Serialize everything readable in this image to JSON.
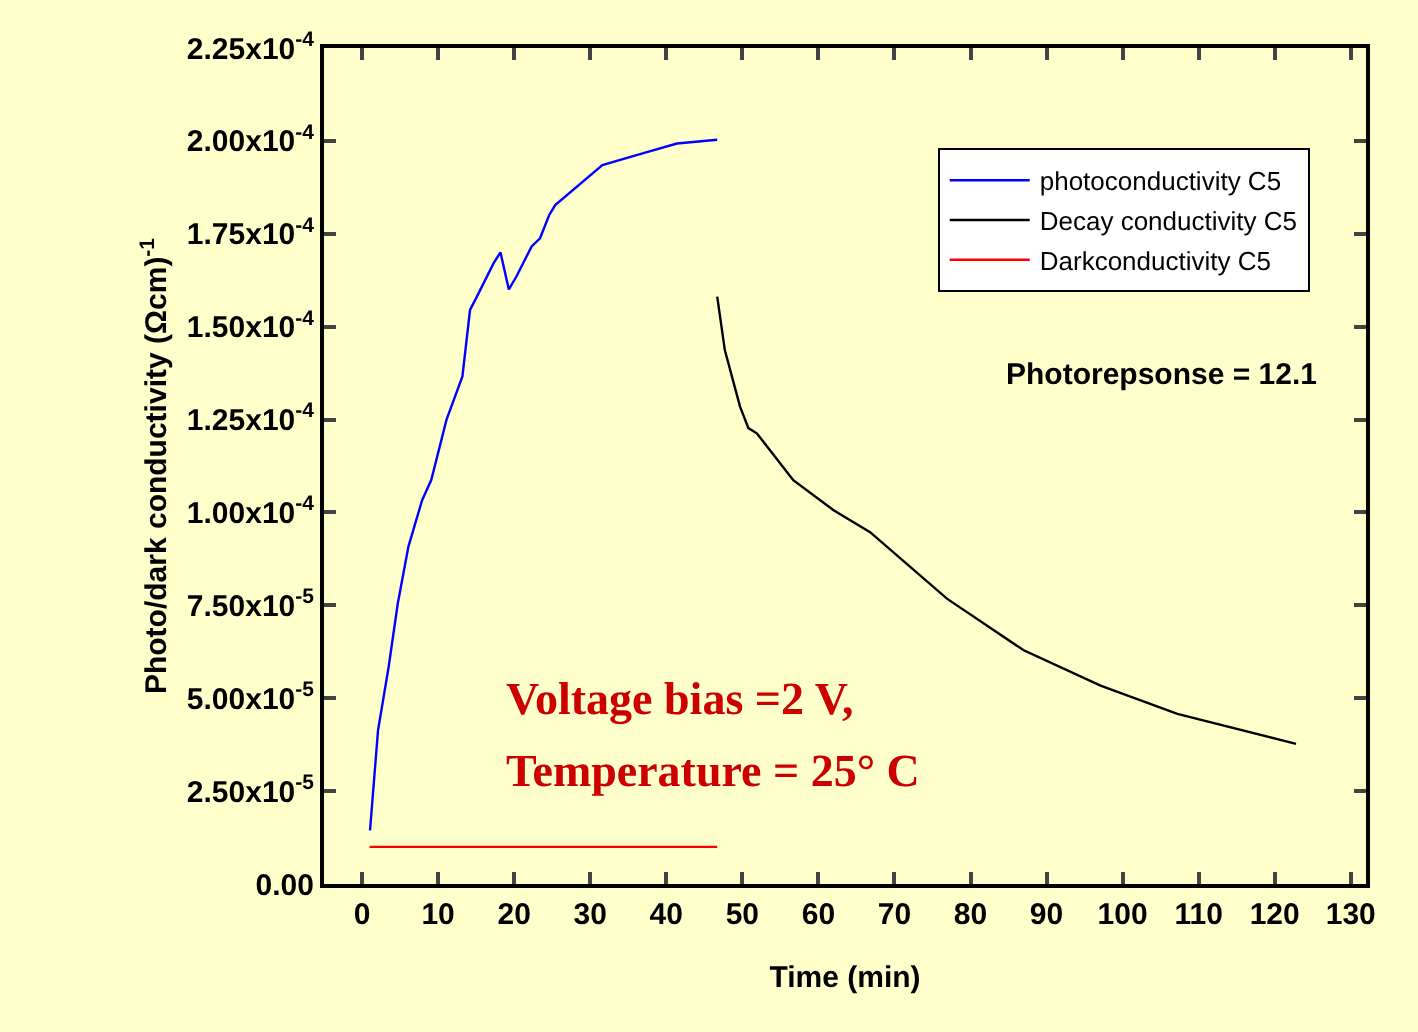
{
  "chart_data": {
    "type": "line",
    "xlabel": "Time (min)",
    "ylabel": "Photo/dark conductivity (Ωcm)$^{-1}$",
    "xlim": [
      -5,
      132
    ],
    "xticks": [
      0,
      10,
      20,
      30,
      40,
      50,
      60,
      70,
      80,
      90,
      100,
      110,
      120,
      130
    ],
    "ylim": [
      0,
      0.000225
    ],
    "yticks": [
      {
        "value": 0,
        "label": "0.00"
      },
      {
        "value": 2.5e-05,
        "label": "2.50x10$^{-5}$"
      },
      {
        "value": 5e-05,
        "label": "5.00x10$^{-5}$"
      },
      {
        "value": 7.5e-05,
        "label": "7.50x10$^{-5}$"
      },
      {
        "value": 0.0001,
        "label": "1.00x10$^{-4}$"
      },
      {
        "value": 0.000125,
        "label": "1.25x10$^{-4}$"
      },
      {
        "value": 0.00015,
        "label": "1.50x10$^{-4}$"
      },
      {
        "value": 0.000175,
        "label": "1.75x10$^{-4}$"
      },
      {
        "value": 0.0002,
        "label": "2.00x10$^{-4}$"
      },
      {
        "value": 0.000225,
        "label": "2.25x10$^{-4}$"
      }
    ],
    "grid": false,
    "legend": "top right",
    "marker": "none",
    "line_style": "solid",
    "series": [
      {
        "name": "photoconductivity C5",
        "color": "#0000ff",
        "x": [
          1.05,
          2.1,
          3.5,
          4.7,
          6.1,
          7.9,
          9.1,
          11.1,
          13.2,
          14.2,
          15.1,
          17.3,
          18.2,
          19.3,
          20.3,
          22.3,
          23.4,
          24.6,
          25.4,
          31.6,
          37.0,
          41.4,
          46.7
        ],
        "values": [
          1.44e-05,
          4.13e-05,
          5.84e-05,
          7.55e-05,
          9.08e-05,
          0.0001033,
          0.0001087,
          0.0001249,
          0.0001366,
          0.0001545,
          0.0001581,
          0.0001671,
          0.00017,
          0.00016,
          0.0001635,
          0.0001716,
          0.0001738,
          0.00018,
          0.0001827,
          0.0001935,
          0.0001967,
          0.0001993,
          0.0002003
        ]
      },
      {
        "name": "Decay conductivity C5",
        "color": "#000000",
        "x": [
          46.7,
          47.7,
          49.7,
          50.8,
          51.9,
          56.7,
          62.0,
          66.8,
          76.9,
          87.0,
          97.1,
          107.2,
          122.8
        ],
        "values": [
          0.0001581,
          0.0001437,
          0.0001285,
          0.0001227,
          0.0001213,
          0.0001087,
          0.0001006,
          9.47e-05,
          7.68e-05,
          6.29e-05,
          5.34e-05,
          4.58e-05,
          3.77e-05
        ]
      },
      {
        "name": "Darkconductivity C5",
        "color": "#ff0000",
        "x": [
          1.0,
          46.7
        ],
        "values": [
          1e-05,
          1e-05
        ]
      }
    ],
    "annotations": [
      "Photorepsonse = 12.1",
      "Voltage bias =2 V,",
      "Temperature = 25° C"
    ]
  }
}
